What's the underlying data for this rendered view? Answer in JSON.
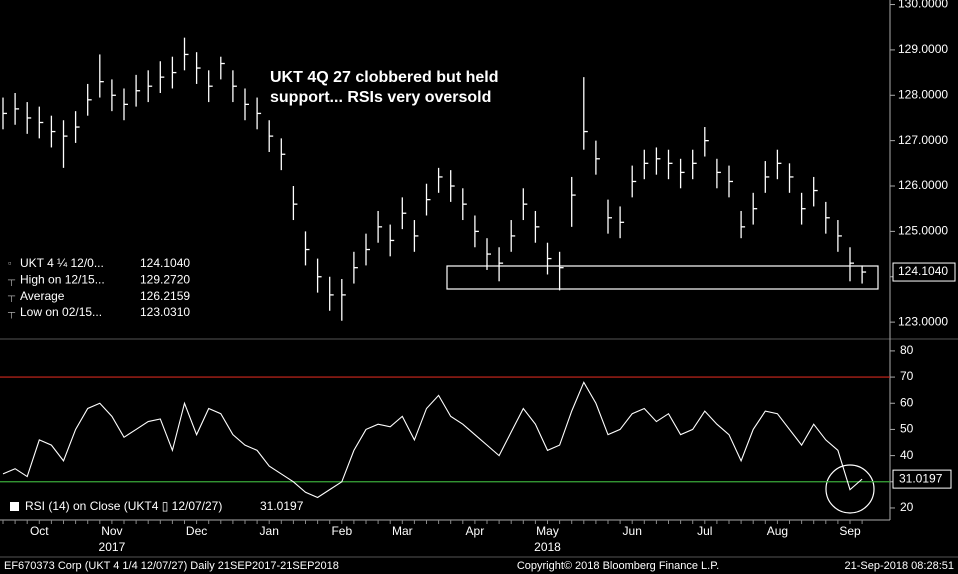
{
  "chart_data": [
    {
      "type": "ohlc",
      "title": "UKT 4Q 27 clobbered but held support... RSIs very oversold",
      "ylim": [
        122.65,
        130.1
      ],
      "yticks": [
        {
          "value": 123,
          "label": "123.0000"
        },
        {
          "value": 124,
          "label": "124.0000"
        },
        {
          "value": 125,
          "label": "125.0000"
        },
        {
          "value": 126,
          "label": "126.0000"
        },
        {
          "value": 127,
          "label": "127.0000"
        },
        {
          "value": 128,
          "label": "128.0000"
        },
        {
          "value": 129,
          "label": "129.0000"
        },
        {
          "value": 130,
          "label": "130.0000"
        }
      ],
      "color": "#ffffff",
      "legend": [
        [
          "UKT 4 ¼ 12/0...",
          "124.1040"
        ],
        [
          "High on 12/15...",
          "129.2720"
        ],
        [
          "Average",
          "126.2159"
        ],
        [
          "Low on 02/15...",
          "123.0310"
        ]
      ],
      "last_label": "124.1040",
      "high": [
        127.95,
        128.05,
        127.85,
        127.75,
        127.55,
        127.45,
        127.65,
        128.25,
        128.9,
        128.35,
        128.15,
        128.45,
        128.55,
        128.75,
        128.85,
        129.27,
        128.95,
        128.55,
        128.85,
        128.55,
        128.15,
        127.95,
        127.45,
        127.05,
        126.0,
        125.0,
        124.4,
        124.0,
        123.95,
        124.55,
        124.95,
        125.45,
        125.15,
        125.75,
        125.25,
        126.05,
        126.4,
        126.35,
        125.95,
        125.35,
        124.85,
        124.65,
        125.25,
        125.95,
        125.45,
        124.75,
        124.55,
        126.2,
        128.4,
        127.0,
        125.7,
        125.55,
        126.45,
        126.8,
        126.85,
        126.8,
        126.6,
        126.8,
        127.3,
        126.6,
        126.45,
        125.45,
        125.85,
        126.55,
        126.8,
        126.5,
        125.85,
        126.2,
        125.65,
        125.25,
        124.65,
        124.25
      ],
      "low": [
        127.25,
        127.35,
        127.15,
        127.05,
        126.85,
        126.4,
        126.95,
        127.55,
        127.95,
        127.65,
        127.45,
        127.75,
        127.85,
        128.05,
        128.15,
        128.55,
        128.25,
        127.85,
        128.35,
        127.85,
        127.45,
        127.25,
        126.75,
        126.35,
        125.25,
        124.25,
        123.65,
        123.25,
        123.03,
        123.85,
        124.25,
        124.75,
        124.45,
        125.05,
        124.55,
        125.35,
        125.85,
        125.65,
        125.25,
        124.65,
        124.15,
        123.9,
        124.55,
        125.25,
        124.75,
        124.05,
        123.7,
        125.1,
        126.8,
        126.25,
        124.95,
        124.85,
        125.75,
        126.15,
        126.25,
        126.15,
        125.95,
        126.15,
        126.65,
        125.95,
        125.75,
        124.85,
        125.15,
        125.85,
        126.15,
        125.85,
        125.15,
        125.55,
        124.95,
        124.55,
        123.9,
        123.85
      ],
      "close": [
        127.6,
        127.7,
        127.5,
        127.4,
        127.2,
        127.1,
        127.3,
        127.9,
        128.3,
        128.0,
        127.8,
        128.1,
        128.2,
        128.4,
        128.5,
        128.9,
        128.6,
        128.2,
        128.7,
        128.2,
        127.8,
        127.6,
        127.1,
        126.7,
        125.6,
        124.6,
        124.0,
        123.6,
        123.6,
        124.2,
        124.6,
        125.1,
        124.8,
        125.4,
        124.9,
        125.7,
        126.2,
        126.0,
        125.6,
        125.0,
        124.5,
        124.3,
        124.9,
        125.6,
        125.1,
        124.4,
        124.2,
        125.8,
        127.2,
        126.6,
        125.3,
        125.2,
        126.1,
        126.5,
        126.6,
        126.5,
        126.3,
        126.5,
        127.0,
        126.3,
        126.1,
        125.1,
        125.5,
        126.2,
        126.5,
        126.2,
        125.5,
        125.9,
        125.3,
        124.9,
        124.3,
        124.104
      ]
    },
    {
      "type": "line",
      "ylim": [
        15.4,
        83.4
      ],
      "yticks": [
        20,
        30,
        40,
        50,
        60,
        70,
        80
      ],
      "hlines": [
        {
          "value": 70,
          "color": "#d0281e"
        },
        {
          "value": 30,
          "color": "#3aa83a"
        }
      ],
      "categories": [
        null,
        null,
        null,
        "Oct",
        null,
        null,
        null,
        null,
        null,
        "Nov",
        null,
        null,
        null,
        null,
        null,
        null,
        "Dec",
        null,
        null,
        null,
        null,
        null,
        "Jan",
        null,
        null,
        null,
        null,
        null,
        "Feb",
        null,
        null,
        null,
        null,
        "Mar",
        null,
        null,
        null,
        null,
        null,
        "Apr",
        null,
        null,
        null,
        null,
        null,
        "May",
        null,
        null,
        null,
        null,
        null,
        null,
        "Jun",
        null,
        null,
        null,
        null,
        null,
        "Jul",
        null,
        null,
        null,
        null,
        null,
        "Aug",
        null,
        null,
        null,
        null,
        null,
        "Sep",
        null
      ],
      "years": [
        {
          "label": "2017",
          "at": 9
        },
        {
          "label": "2018",
          "at": 45
        }
      ],
      "series": [
        {
          "name": "RSI (14)  on Close (UKT4 ▯ 12/07/27)",
          "color": "#ffffff",
          "values": [
            33,
            35,
            32,
            46,
            44,
            38,
            50,
            58,
            60,
            55,
            47,
            50,
            53,
            54,
            42,
            60,
            48,
            58,
            56,
            48,
            44,
            42,
            36,
            33,
            30,
            26,
            24,
            27,
            30,
            42,
            50,
            52,
            51,
            55,
            46,
            58,
            63,
            55,
            52,
            48,
            44,
            40,
            49,
            58,
            52,
            42,
            44,
            57,
            68,
            60,
            48,
            50,
            56,
            58,
            53,
            56,
            48,
            50,
            57,
            52,
            48,
            38,
            50,
            57,
            56,
            50,
            44,
            52,
            46,
            42,
            27,
            31.0197
          ]
        }
      ],
      "legend_value": "31.0197",
      "last_label": "31.0197"
    }
  ],
  "footer": {
    "left": "EF670373 Corp (UKT 4 1/4 12/07/27)  Daily 21SEP2017-21SEP2018",
    "center": "Copyright© 2018 Bloomberg Finance L.P.",
    "right": "21-Sep-2018 08:28:51"
  }
}
